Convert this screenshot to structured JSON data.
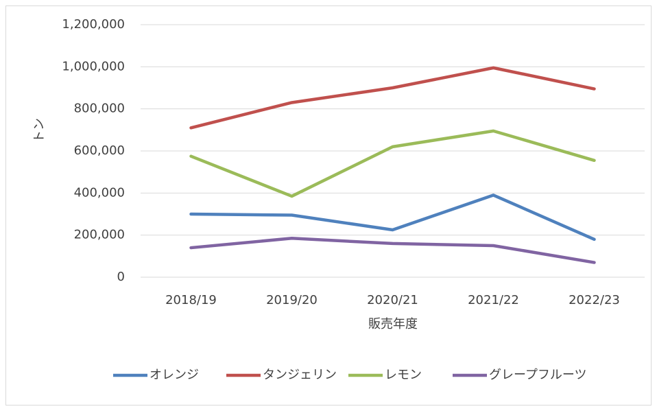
{
  "chart_data": {
    "type": "line",
    "ylabel": "トン",
    "xlabel": "販売年度",
    "categories": [
      "2018/19",
      "2019/20",
      "2020/21",
      "2021/22",
      "2022/23"
    ],
    "series": [
      {
        "name": "オレンジ",
        "color": "#4f81bd",
        "values": [
          300000,
          295000,
          225000,
          390000,
          180000
        ]
      },
      {
        "name": "タンジェリン",
        "color": "#c0504d",
        "values": [
          710000,
          830000,
          900000,
          995000,
          895000
        ]
      },
      {
        "name": "レモン",
        "color": "#9bbb59",
        "values": [
          575000,
          385000,
          620000,
          695000,
          555000
        ]
      },
      {
        "name": "グレープフルーツ",
        "color": "#8064a2",
        "values": [
          140000,
          185000,
          160000,
          150000,
          70000
        ]
      }
    ],
    "ylim": [
      0,
      1200000
    ],
    "yticks": [
      0,
      {
        "value": 200000,
        "label": "200,000"
      },
      {
        "value": 400000,
        "label": "400,000"
      },
      {
        "value": 600000,
        "label": "600,000"
      },
      {
        "value": 800000,
        "label": "800,000"
      },
      {
        "value": 1000000,
        "label": "1,000,000"
      },
      {
        "value": 1200000,
        "label": "1,200,000"
      }
    ],
    "grid": true,
    "legend": "bottom"
  }
}
